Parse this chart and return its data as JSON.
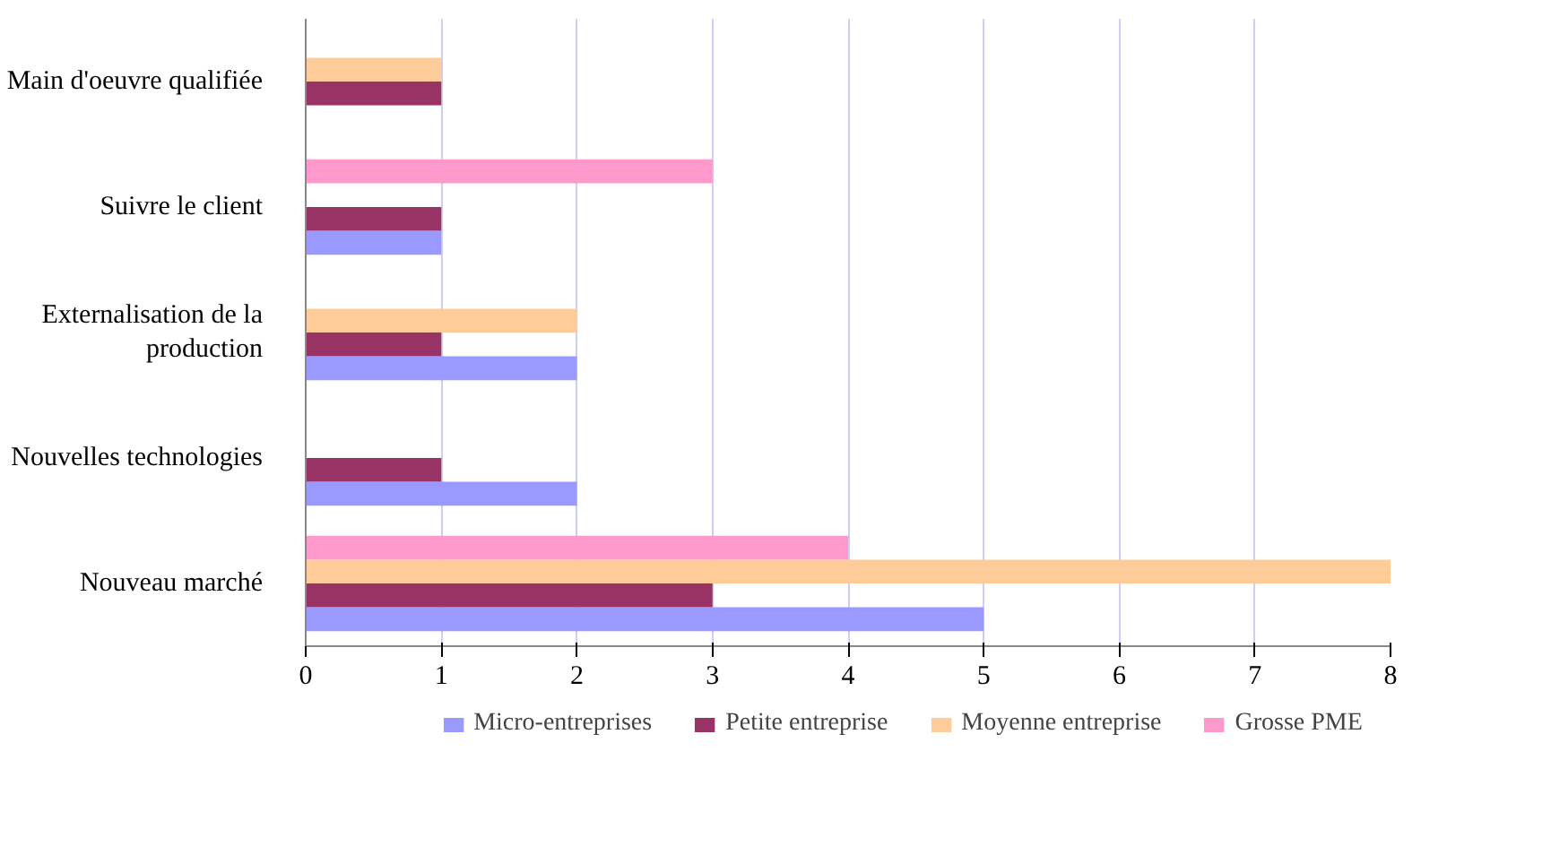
{
  "chart_data": {
    "type": "bar",
    "orientation": "horizontal",
    "categories": [
      "Main d'oeuvre qualifiée",
      "Suivre le client",
      "Externalisation de la production",
      "Nouvelles technologies",
      "Nouveau marché"
    ],
    "series": [
      {
        "name": "Micro-entreprises",
        "color": "#9999ff",
        "values": [
          0,
          1,
          2,
          2,
          5
        ]
      },
      {
        "name": "Petite entreprise",
        "color": "#993366",
        "values": [
          1,
          1,
          1,
          1,
          3
        ]
      },
      {
        "name": "Moyenne entreprise",
        "color": "#ffcc99",
        "values": [
          1,
          0,
          2,
          0,
          8
        ]
      },
      {
        "name": "Grosse PME",
        "color": "#ff99cc",
        "values": [
          0,
          3,
          0,
          0,
          4
        ]
      }
    ],
    "xlim": [
      0,
      8
    ],
    "xticks": [
      0,
      1,
      2,
      3,
      4,
      5,
      6,
      7,
      8
    ],
    "grid": "x",
    "legend": "bottom"
  }
}
